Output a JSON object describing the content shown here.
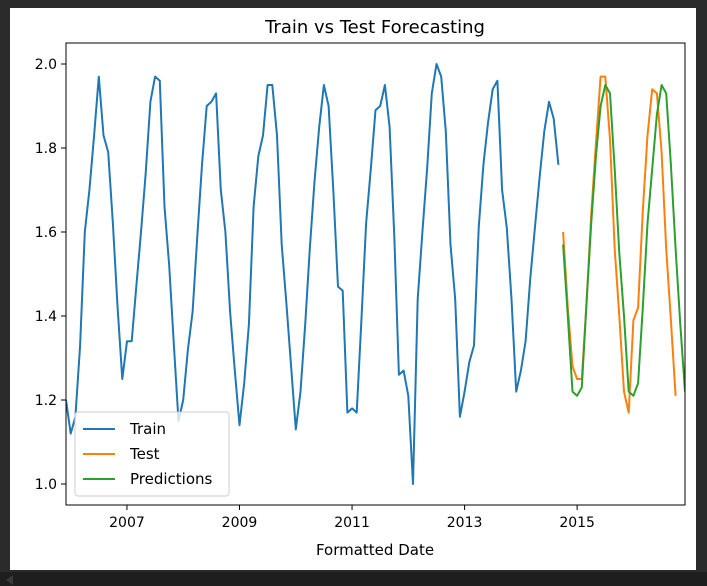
{
  "chart_data": {
    "type": "line",
    "title": "Train vs Test Forecasting",
    "xlabel": "Formatted Date",
    "ylabel": "",
    "xlim": [
      "2005-12",
      "2016-12"
    ],
    "ylim": [
      0.95,
      2.05
    ],
    "x_ticks": [
      {
        "value": "2007-01",
        "label": "2007"
      },
      {
        "value": "2009-01",
        "label": "2009"
      },
      {
        "value": "2011-01",
        "label": "2011"
      },
      {
        "value": "2013-01",
        "label": "2013"
      },
      {
        "value": "2015-01",
        "label": "2015"
      }
    ],
    "y_ticks": [
      {
        "value": 1.0,
        "label": "1.0"
      },
      {
        "value": 1.2,
        "label": "1.2"
      },
      {
        "value": 1.4,
        "label": "1.4"
      },
      {
        "value": 1.6,
        "label": "1.6"
      },
      {
        "value": 1.8,
        "label": "1.8"
      },
      {
        "value": 2.0,
        "label": "2.0"
      }
    ],
    "grid": false,
    "legend_position": "lower-left",
    "series": [
      {
        "name": "Train",
        "color": "#1f77b4",
        "start": "2005-12",
        "values": [
          1.2,
          1.12,
          1.16,
          1.33,
          1.6,
          1.7,
          1.83,
          1.97,
          1.83,
          1.79,
          1.62,
          1.42,
          1.25,
          1.34,
          1.34,
          1.47,
          1.6,
          1.74,
          1.91,
          1.97,
          1.96,
          1.66,
          1.52,
          1.33,
          1.15,
          1.2,
          1.32,
          1.41,
          1.59,
          1.76,
          1.9,
          1.91,
          1.93,
          1.7,
          1.6,
          1.41,
          1.27,
          1.14,
          1.24,
          1.38,
          1.66,
          1.78,
          1.83,
          1.95,
          1.95,
          1.83,
          1.57,
          1.43,
          1.28,
          1.13,
          1.22,
          1.38,
          1.56,
          1.72,
          1.85,
          1.95,
          1.9,
          1.7,
          1.47,
          1.46,
          1.17,
          1.18,
          1.17,
          1.39,
          1.62,
          1.75,
          1.89,
          1.9,
          1.95,
          1.85,
          1.59,
          1.26,
          1.27,
          1.21,
          1.0,
          1.44,
          1.6,
          1.75,
          1.93,
          2.0,
          1.97,
          1.84,
          1.57,
          1.44,
          1.16,
          1.22,
          1.29,
          1.33,
          1.61,
          1.76,
          1.86,
          1.94,
          1.96,
          1.7,
          1.61,
          1.44,
          1.22,
          1.27,
          1.34,
          1.49,
          1.61,
          1.73,
          1.84,
          1.91,
          1.87,
          1.76
        ]
      },
      {
        "name": "Test",
        "color": "#ff7f0e",
        "start": "2014-10",
        "values": [
          1.6,
          1.42,
          1.28,
          1.25,
          1.25,
          1.43,
          1.64,
          1.81,
          1.97,
          1.97,
          1.82,
          1.56,
          1.4,
          1.22,
          1.17,
          1.39,
          1.42,
          1.65,
          1.83,
          1.94,
          1.93,
          1.79,
          1.56,
          1.39,
          1.21
        ]
      },
      {
        "name": "Predictions",
        "color": "#2ca02c",
        "start": "2014-10",
        "values": [
          1.57,
          1.4,
          1.22,
          1.21,
          1.23,
          1.43,
          1.62,
          1.78,
          1.9,
          1.95,
          1.93,
          1.75,
          1.55,
          1.4,
          1.22,
          1.21,
          1.24,
          1.42,
          1.62,
          1.75,
          1.88,
          1.95,
          1.93,
          1.76,
          1.56,
          1.38,
          1.22
        ]
      }
    ]
  }
}
